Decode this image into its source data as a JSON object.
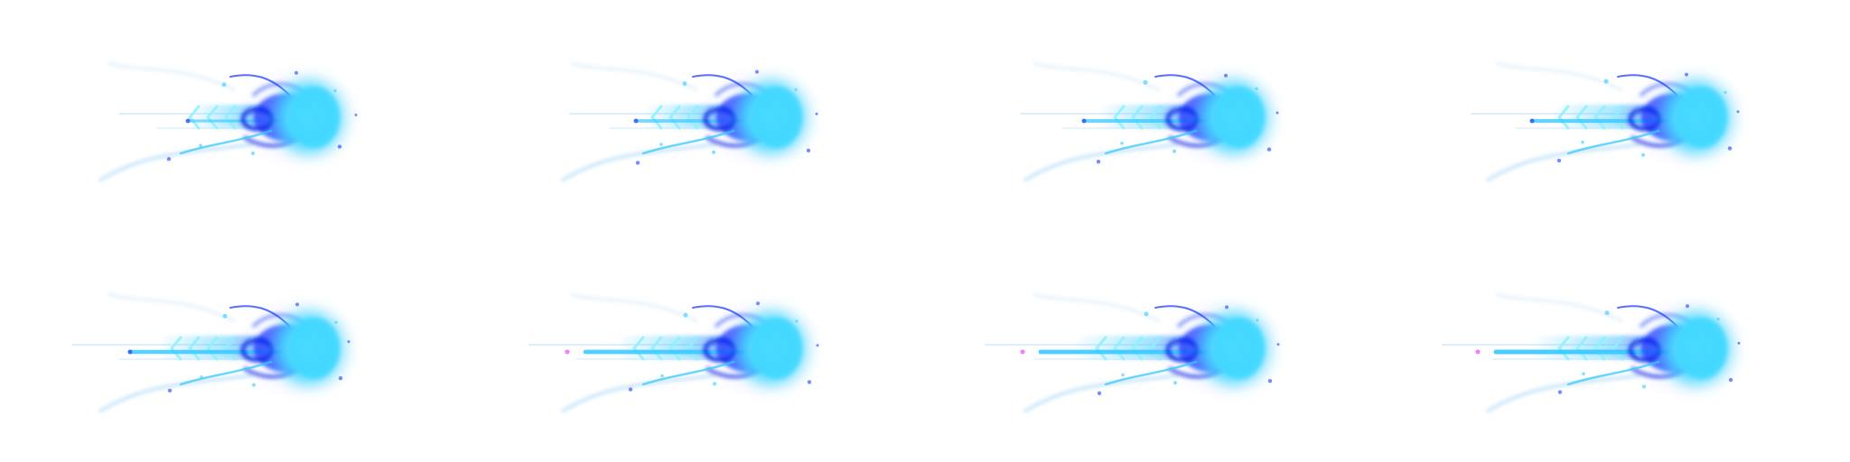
{
  "sprite_sheet": {
    "frame_count": 8,
    "colors": {
      "background": "#ffffff",
      "core_cyan": "#3fd8ff",
      "core_light": "#8ff0ff",
      "swirl_blue": "#1f3dff",
      "swirl_deep": "#0d24e6",
      "trail_cyan": "#36c8ff",
      "trail_pale": "#9fd2f5",
      "haze": "#c9d6ff",
      "accent_magenta": "#f27dff"
    },
    "frames": [
      {
        "index": 1,
        "trail_level": 0.45,
        "magenta_trail": false
      },
      {
        "index": 2,
        "trail_level": 0.55,
        "magenta_trail": false
      },
      {
        "index": 3,
        "trail_level": 0.65,
        "magenta_trail": false
      },
      {
        "index": 4,
        "trail_level": 0.75,
        "magenta_trail": false
      },
      {
        "index": 5,
        "trail_level": 0.85,
        "magenta_trail": false
      },
      {
        "index": 6,
        "trail_level": 0.9,
        "magenta_trail": true
      },
      {
        "index": 7,
        "trail_level": 0.95,
        "magenta_trail": true
      },
      {
        "index": 8,
        "trail_level": 1.0,
        "magenta_trail": true
      }
    ]
  }
}
